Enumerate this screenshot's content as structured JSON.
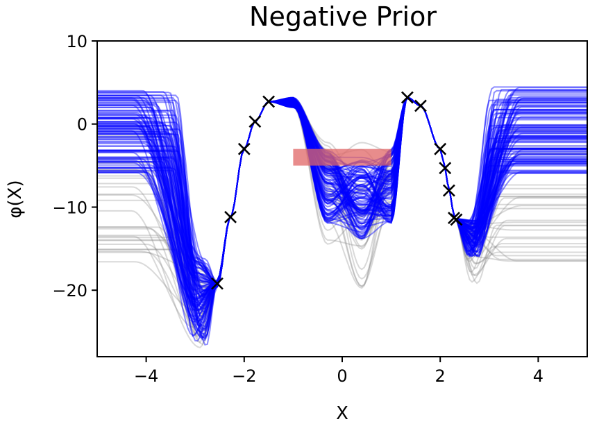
{
  "chart_data": {
    "type": "line",
    "title": "Negative Prior",
    "xlabel": "X",
    "ylabel": "φ(X)",
    "xlim": [
      -5,
      5
    ],
    "ylim": [
      -28,
      10
    ],
    "xticks": [
      -4,
      -2,
      0,
      2,
      4
    ],
    "xtick_labels": [
      "−4",
      "−2",
      "0",
      "2",
      "4"
    ],
    "yticks": [
      10,
      0,
      -10,
      -20
    ],
    "ytick_labels": [
      "10",
      "0",
      "−10",
      "−20"
    ],
    "grid": false,
    "observations": {
      "marker": "x",
      "color": "#000000",
      "x": [
        -2.55,
        -2.28,
        -2.0,
        -1.78,
        -1.5,
        1.33,
        1.6,
        2.0,
        2.1,
        2.18,
        2.28,
        2.33
      ],
      "y": [
        -19.2,
        -11.2,
        -3.0,
        0.3,
        2.7,
        3.2,
        2.2,
        -3.0,
        -5.3,
        -8.0,
        -11.3,
        -11.5
      ]
    },
    "constraint_region": {
      "x": [
        -1.0,
        1.0
      ],
      "y": [
        -5.0,
        -3.0
      ],
      "color": "#e06666"
    },
    "series": [
      {
        "color": "#0000ff",
        "sample_count": 100
      },
      {
        "color": "#808080",
        "sample_count": 30
      }
    ]
  }
}
